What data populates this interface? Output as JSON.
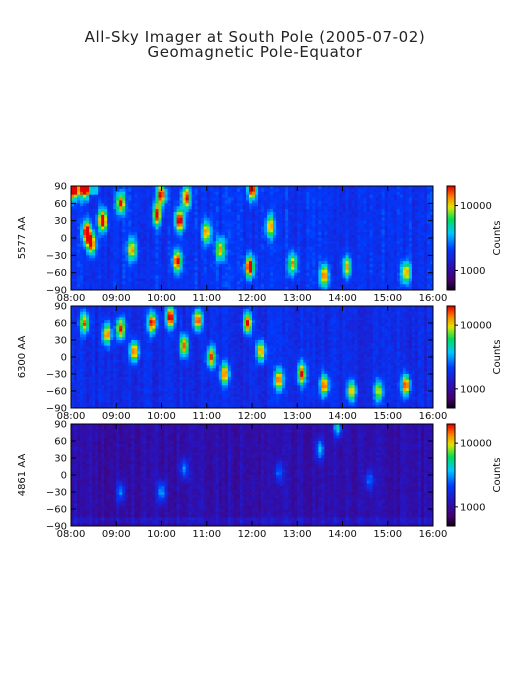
{
  "title_line1": "All-Sky Imager at South Pole (2005-07-02)",
  "title_line2": "Geomagnetic Pole-Equator",
  "chart_data": [
    {
      "type": "heatmap",
      "ylabel": "5577 AA",
      "x_ticks": [
        "08:00",
        "09:00",
        "10:00",
        "11:00",
        "12:00",
        "13:00",
        "14:00",
        "15:00",
        "16:00"
      ],
      "y_ticks": [
        90,
        60,
        30,
        0,
        -30,
        -60,
        -90
      ],
      "xlim": [
        "08:00",
        "16:00"
      ],
      "ylim": [
        -90,
        90
      ],
      "colorbar": {
        "label": "Counts",
        "ticks": [
          1000,
          10000
        ],
        "tick_labels": [
          "1000",
          "10000"
        ],
        "range": [
          500,
          20000
        ],
        "scale": "log"
      },
      "hotspots": [
        {
          "t": 8.05,
          "lat": 85,
          "int": 0.9
        },
        {
          "t": 8.3,
          "lat": 85,
          "int": 0.75
        },
        {
          "t": 8.35,
          "lat": 10,
          "int": 0.85
        },
        {
          "t": 8.45,
          "lat": -10,
          "int": 0.7
        },
        {
          "t": 8.7,
          "lat": 30,
          "int": 0.8
        },
        {
          "t": 9.1,
          "lat": 60,
          "int": 0.65
        },
        {
          "t": 9.35,
          "lat": -20,
          "int": 0.55
        },
        {
          "t": 9.9,
          "lat": 40,
          "int": 0.65
        },
        {
          "t": 10.0,
          "lat": 75,
          "int": 0.7
        },
        {
          "t": 10.35,
          "lat": -40,
          "int": 0.7
        },
        {
          "t": 10.4,
          "lat": 30,
          "int": 0.75
        },
        {
          "t": 10.55,
          "lat": 70,
          "int": 0.65
        },
        {
          "t": 11.0,
          "lat": 10,
          "int": 0.55
        },
        {
          "t": 11.3,
          "lat": -20,
          "int": 0.55
        },
        {
          "t": 11.95,
          "lat": -50,
          "int": 0.8
        },
        {
          "t": 12.0,
          "lat": 85,
          "int": 0.75
        },
        {
          "t": 12.4,
          "lat": 20,
          "int": 0.55
        },
        {
          "t": 12.9,
          "lat": -45,
          "int": 0.55
        },
        {
          "t": 13.6,
          "lat": -65,
          "int": 0.6
        },
        {
          "t": 14.1,
          "lat": -50,
          "int": 0.5
        },
        {
          "t": 15.4,
          "lat": -60,
          "int": 0.55
        }
      ]
    },
    {
      "type": "heatmap",
      "ylabel": "6300 AA",
      "x_ticks": [
        "08:00",
        "09:00",
        "10:00",
        "11:00",
        "12:00",
        "13:00",
        "14:00",
        "15:00",
        "16:00"
      ],
      "y_ticks": [
        90,
        60,
        30,
        0,
        -30,
        -60,
        -90
      ],
      "xlim": [
        "08:00",
        "16:00"
      ],
      "ylim": [
        -90,
        90
      ],
      "colorbar": {
        "label": "Counts",
        "ticks": [
          1000,
          10000
        ],
        "tick_labels": [
          "1000",
          "10000"
        ],
        "range": [
          500,
          20000
        ],
        "scale": "log"
      },
      "hotspots": [
        {
          "t": 8.3,
          "lat": 60,
          "int": 0.6
        },
        {
          "t": 8.8,
          "lat": 40,
          "int": 0.6
        },
        {
          "t": 9.1,
          "lat": 50,
          "int": 0.7
        },
        {
          "t": 9.4,
          "lat": 10,
          "int": 0.65
        },
        {
          "t": 9.8,
          "lat": 60,
          "int": 0.7
        },
        {
          "t": 10.2,
          "lat": 70,
          "int": 0.75
        },
        {
          "t": 10.5,
          "lat": 20,
          "int": 0.65
        },
        {
          "t": 10.8,
          "lat": 65,
          "int": 0.7
        },
        {
          "t": 11.1,
          "lat": 0,
          "int": 0.6
        },
        {
          "t": 11.4,
          "lat": -30,
          "int": 0.6
        },
        {
          "t": 11.9,
          "lat": 60,
          "int": 0.7
        },
        {
          "t": 12.2,
          "lat": 10,
          "int": 0.6
        },
        {
          "t": 12.6,
          "lat": -40,
          "int": 0.6
        },
        {
          "t": 13.1,
          "lat": -30,
          "int": 0.65
        },
        {
          "t": 13.6,
          "lat": -50,
          "int": 0.65
        },
        {
          "t": 14.2,
          "lat": -60,
          "int": 0.55
        },
        {
          "t": 14.8,
          "lat": -60,
          "int": 0.5
        },
        {
          "t": 15.4,
          "lat": -50,
          "int": 0.7
        }
      ]
    },
    {
      "type": "heatmap",
      "ylabel": "4861 AA",
      "x_ticks": [
        "08:00",
        "09:00",
        "10:00",
        "11:00",
        "12:00",
        "13:00",
        "14:00",
        "15:00",
        "16:00"
      ],
      "y_ticks": [
        90,
        60,
        30,
        0,
        -30,
        -60,
        -90
      ],
      "xlim": [
        "08:00",
        "16:00"
      ],
      "ylim": [
        -90,
        90
      ],
      "colorbar": {
        "label": "Counts",
        "ticks": [
          1000,
          10000
        ],
        "tick_labels": [
          "1000",
          "10000"
        ],
        "range": [
          500,
          20000
        ],
        "scale": "log"
      },
      "hotspots": [
        {
          "t": 9.1,
          "lat": -30,
          "int": 0.3
        },
        {
          "t": 10.0,
          "lat": -30,
          "int": 0.35
        },
        {
          "t": 10.5,
          "lat": 10,
          "int": 0.3
        },
        {
          "t": 12.6,
          "lat": 5,
          "int": 0.25
        },
        {
          "t": 13.5,
          "lat": 45,
          "int": 0.35
        },
        {
          "t": 13.9,
          "lat": 85,
          "int": 0.4
        },
        {
          "t": 14.6,
          "lat": -10,
          "int": 0.25
        }
      ]
    }
  ]
}
